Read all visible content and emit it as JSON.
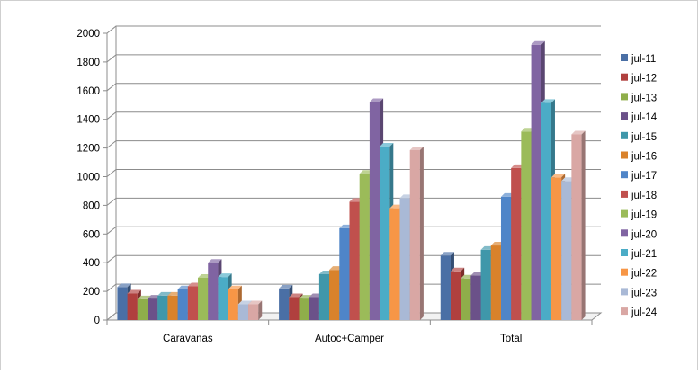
{
  "chart_data": {
    "type": "bar",
    "title": "",
    "xlabel": "",
    "ylabel": "",
    "ylim": [
      0,
      2000
    ],
    "yticks": [
      0,
      200,
      400,
      600,
      800,
      1000,
      1200,
      1400,
      1600,
      1800,
      2000
    ],
    "grid": true,
    "legend_position": "right",
    "categories": [
      "Caravanas",
      "Autoc+Camper",
      "Total"
    ],
    "series": [
      {
        "name": "jul-11",
        "color": "#4a6fa5",
        "values": [
          230,
          220,
          450
        ]
      },
      {
        "name": "jul-12",
        "color": "#b0403e",
        "values": [
          185,
          160,
          340
        ]
      },
      {
        "name": "jul-13",
        "color": "#8fae4a",
        "values": [
          145,
          150,
          290
        ]
      },
      {
        "name": "jul-14",
        "color": "#6b5189",
        "values": [
          150,
          160,
          310
        ]
      },
      {
        "name": "jul-15",
        "color": "#3f97aa",
        "values": [
          170,
          320,
          490
        ]
      },
      {
        "name": "jul-16",
        "color": "#d9822b",
        "values": [
          170,
          350,
          520
        ]
      },
      {
        "name": "jul-17",
        "color": "#4f85c8",
        "values": [
          215,
          640,
          860
        ]
      },
      {
        "name": "jul-18",
        "color": "#c0504d",
        "values": [
          235,
          825,
          1060
        ]
      },
      {
        "name": "jul-19",
        "color": "#9bbb59",
        "values": [
          295,
          1020,
          1315
        ]
      },
      {
        "name": "jul-20",
        "color": "#8064a2",
        "values": [
          400,
          1520,
          1920
        ]
      },
      {
        "name": "jul-21",
        "color": "#4bacc6",
        "values": [
          300,
          1210,
          1515
        ]
      },
      {
        "name": "jul-22",
        "color": "#f79646",
        "values": [
          215,
          780,
          995
        ]
      },
      {
        "name": "jul-23",
        "color": "#a9b9d6",
        "values": [
          110,
          850,
          970
        ]
      },
      {
        "name": "jul-24",
        "color": "#d9a7a4",
        "values": [
          110,
          1185,
          1295
        ]
      }
    ]
  }
}
